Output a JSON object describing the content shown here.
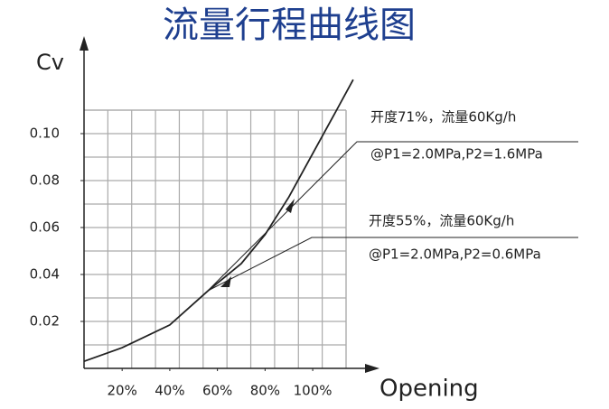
{
  "chart_data": {
    "type": "line",
    "title": "流量行程曲线图",
    "y_label": "Cv",
    "x_label": "Opening",
    "x": [
      4,
      20,
      40,
      56,
      70,
      80,
      90,
      100,
      110,
      117
    ],
    "values": [
      0.003,
      0.0088,
      0.0185,
      0.033,
      0.0446,
      0.057,
      0.073,
      0.0915,
      0.11,
      0.123
    ],
    "color": "#222222",
    "xlim": [
      4,
      114
    ],
    "ylim": [
      0,
      0.14
    ],
    "xticks": [
      {
        "value": 20,
        "label": "20%"
      },
      {
        "value": 40,
        "label": "40%"
      },
      {
        "value": 60,
        "label": "60%"
      },
      {
        "value": 80,
        "label": "80%"
      },
      {
        "value": 100,
        "label": "100%"
      }
    ],
    "yticks": [
      0.02,
      0.04,
      0.06,
      0.08,
      {
        "value": 0.1,
        "label": "0.10"
      }
    ],
    "grid": true,
    "annotations": [
      "开度71%，流量60Kg/h",
      "@P1=2.0MPa,P2=1.6MPa",
      "开度55%，流量60Kg/h",
      "@P1=2.0MPa,P2=0.6MPa"
    ]
  }
}
